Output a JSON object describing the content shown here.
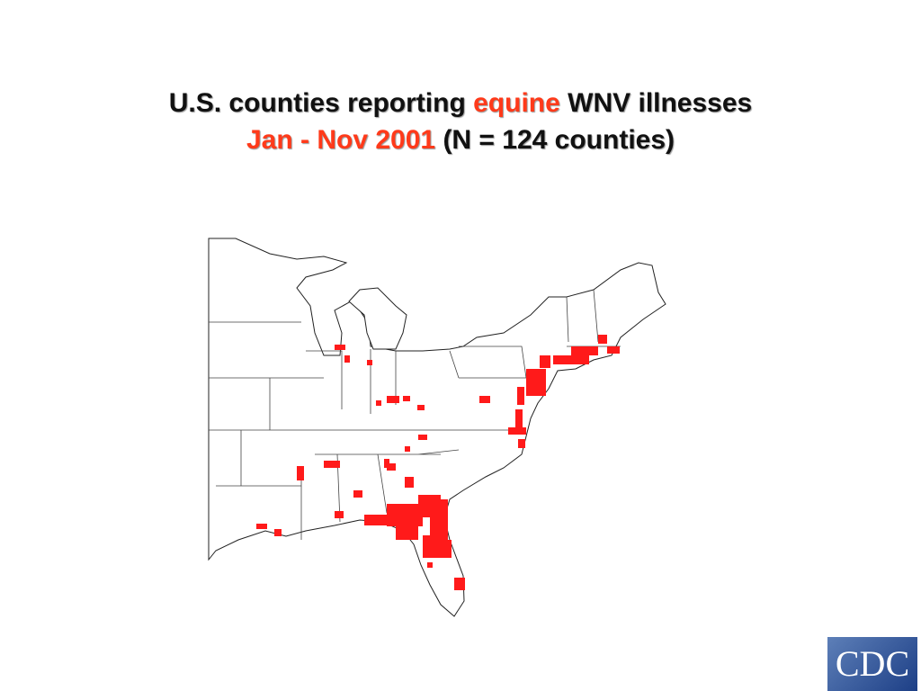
{
  "title": {
    "line1": [
      "U.S. counties reporting",
      "equine",
      "WNV illnesses"
    ],
    "line2": [
      "Jan - Nov 2001",
      "(N = 124 counties)"
    ]
  },
  "logo": "CDC"
}
